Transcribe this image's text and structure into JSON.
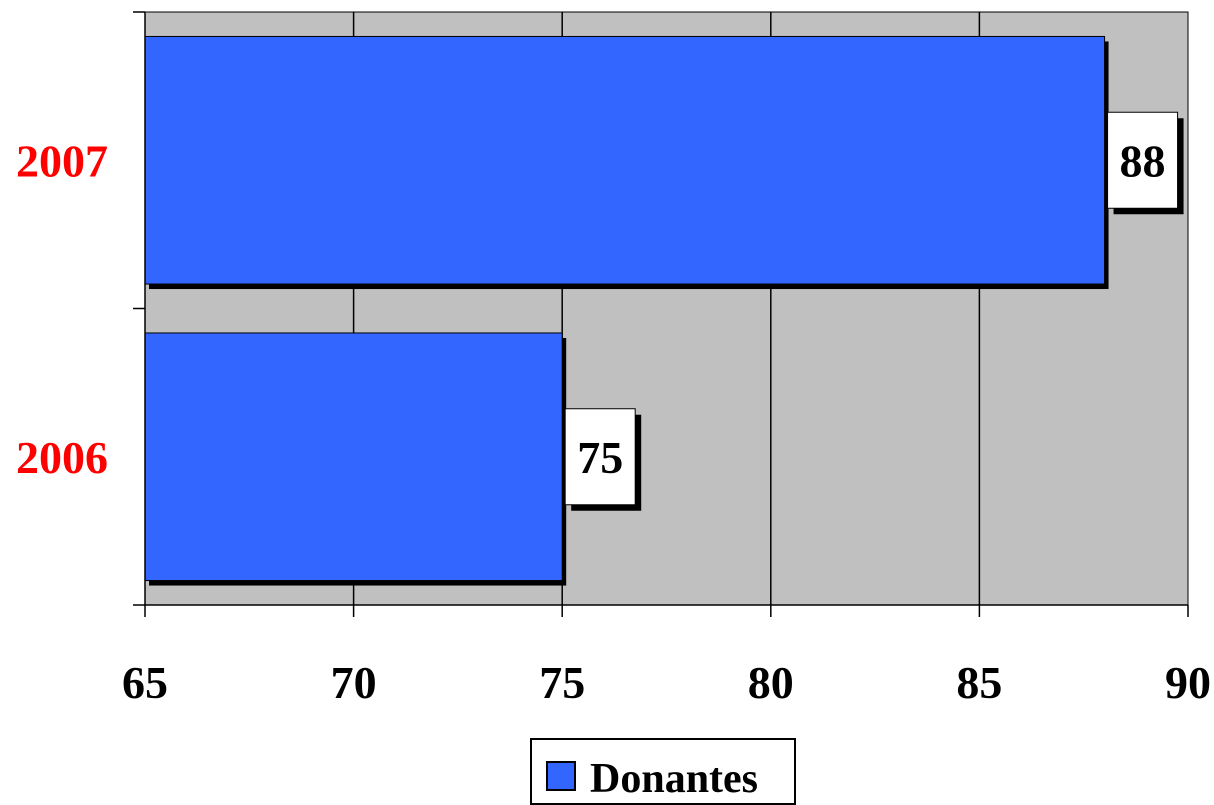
{
  "chart_data": {
    "type": "bar",
    "orientation": "horizontal",
    "categories": [
      "2006",
      "2007"
    ],
    "series": [
      {
        "name": "Donantes",
        "values": [
          75,
          88
        ]
      }
    ],
    "data_labels": [
      "75",
      "88"
    ],
    "xlim": [
      65,
      90
    ],
    "x_ticks": [
      "65",
      "70",
      "75",
      "80",
      "85",
      "90"
    ],
    "title": "",
    "xlabel": "",
    "ylabel": "",
    "grid": "vertical",
    "legend_position": "bottom",
    "colors": {
      "bar": "#3366ff",
      "plot_background": "#c0c0c0",
      "category_label": "#ff0000",
      "shadow": "#000000"
    }
  }
}
